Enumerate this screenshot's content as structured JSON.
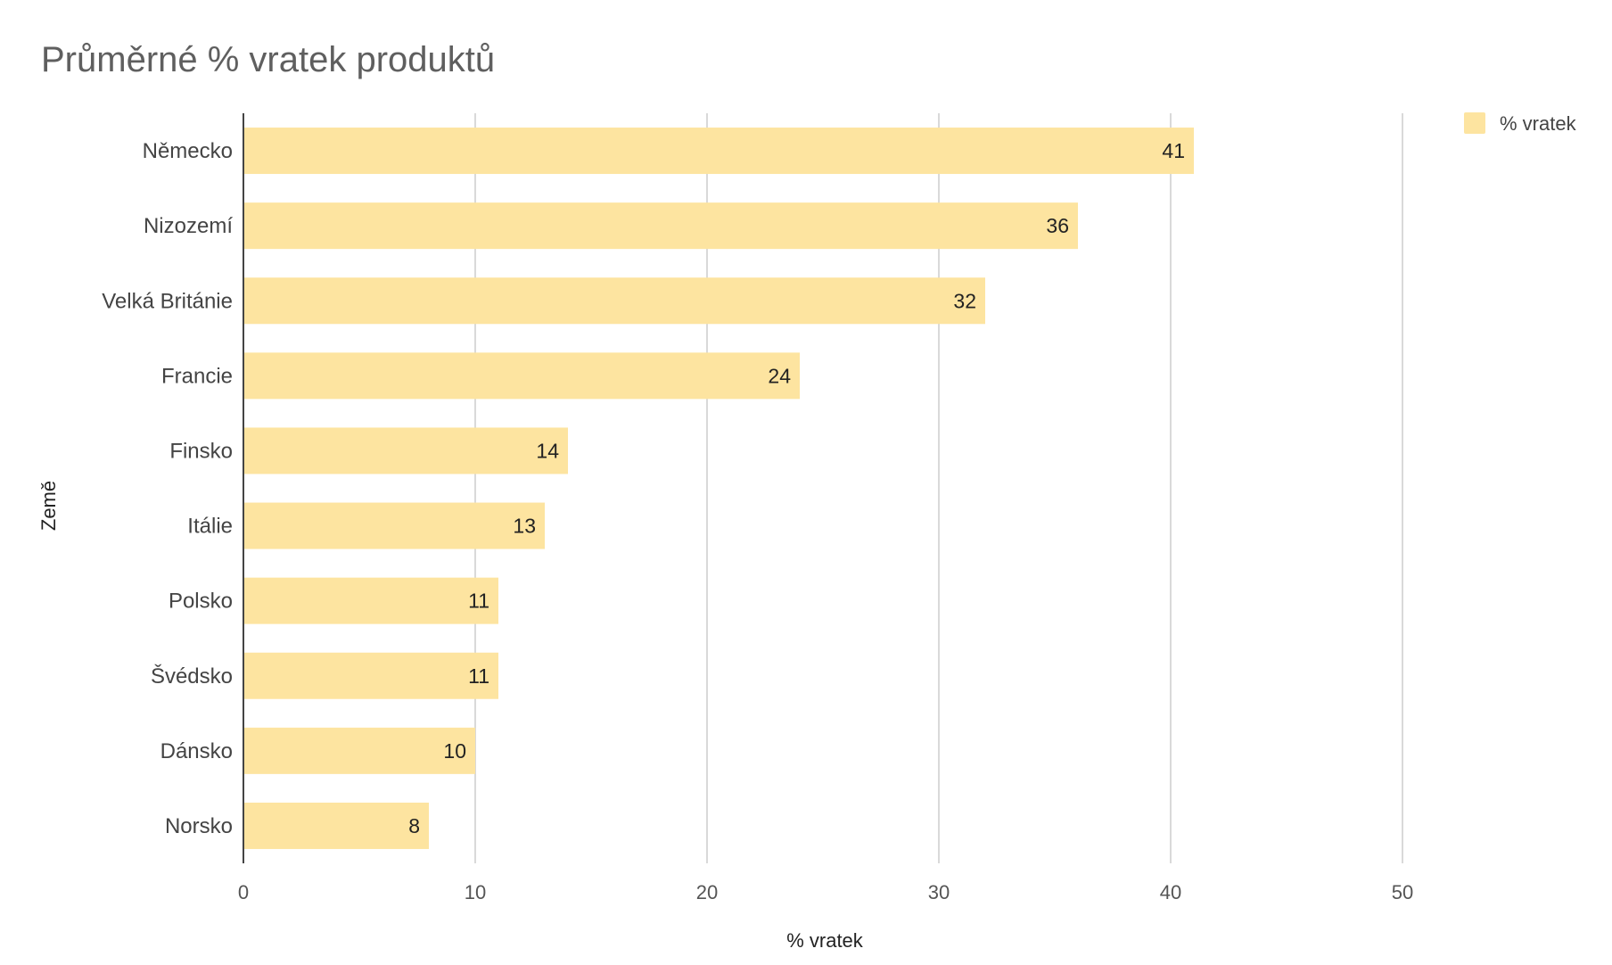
{
  "chart_data": {
    "type": "bar",
    "orientation": "horizontal",
    "title": "Průměrné % vratek produktů",
    "xlabel": "% vratek",
    "ylabel": "Země",
    "xlim": [
      0,
      50
    ],
    "x_ticks": [
      0,
      10,
      20,
      30,
      40,
      50
    ],
    "grid": true,
    "legend_position": "top-right",
    "categories": [
      "Německo",
      "Nizozemí",
      "Velká Británie",
      "Francie",
      "Finsko",
      "Itálie",
      "Polsko",
      "Švédsko",
      "Dánsko",
      "Norsko"
    ],
    "series": [
      {
        "name": "% vratek",
        "color": "#fde4a0",
        "values": [
          41,
          36,
          32,
          24,
          14,
          13,
          11,
          11,
          10,
          8
        ]
      }
    ],
    "data_labels": true
  }
}
